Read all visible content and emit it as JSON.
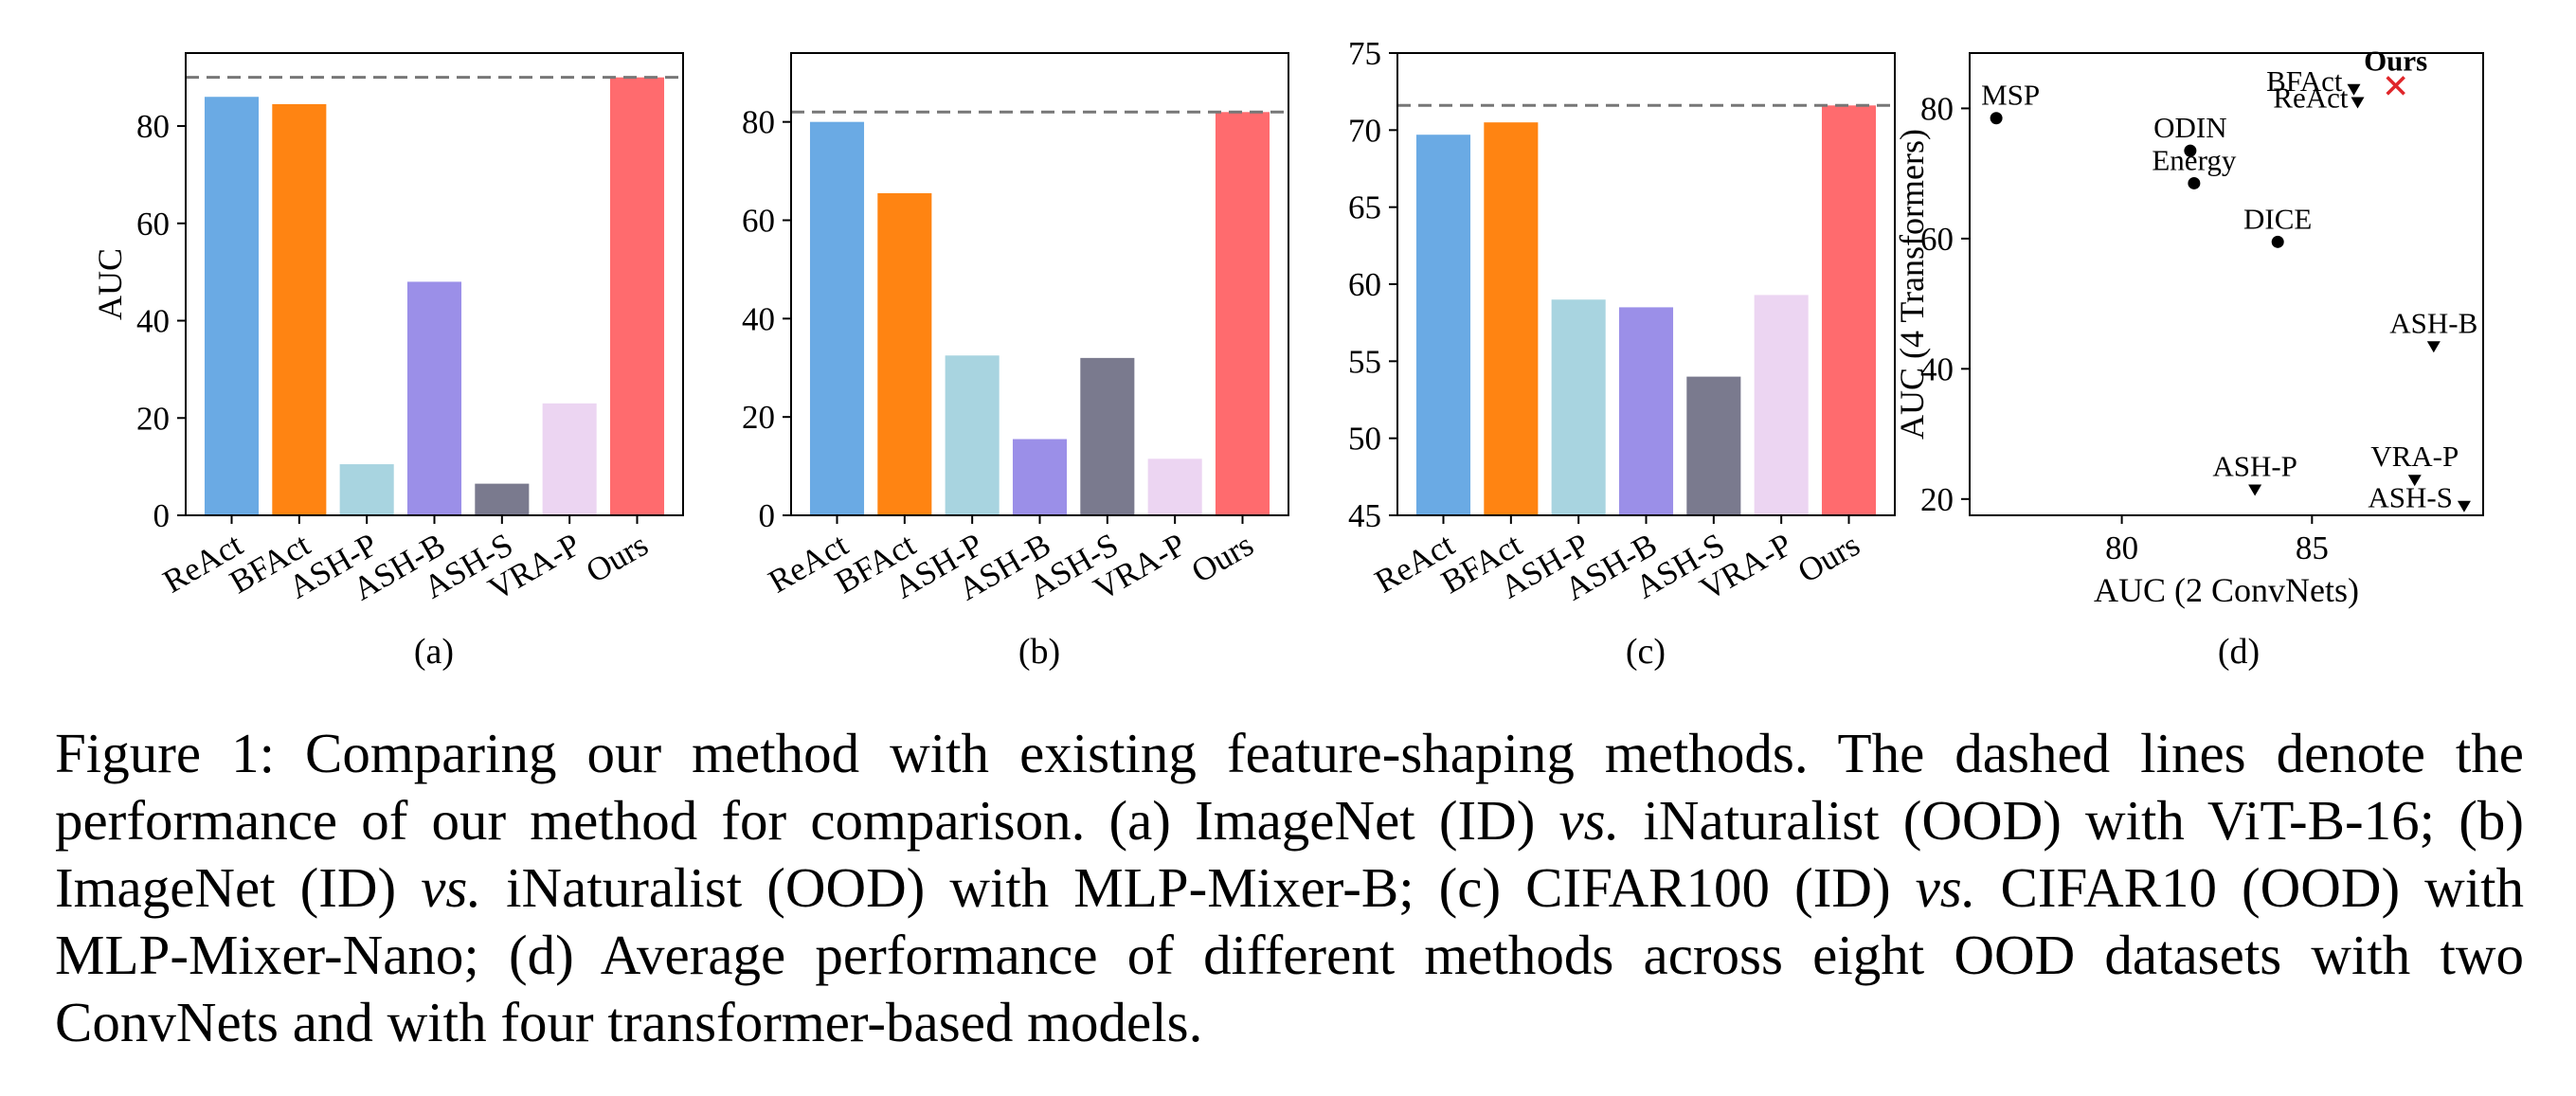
{
  "chart_data": [
    {
      "type": "bar",
      "panel": "(a)",
      "categories": [
        "ReAct",
        "BFAct",
        "ASH-P",
        "ASH-B",
        "ASH-S",
        "VRA-P",
        "Ours"
      ],
      "values": [
        86,
        84.5,
        10.5,
        48,
        6.5,
        23,
        90
      ],
      "colors": [
        "#6aaae4",
        "#ff8412",
        "#a8d4e0",
        "#9b8fe8",
        "#7a7a8e",
        "#ecd5f2",
        "#ff6b6e"
      ],
      "reference_line": 90,
      "xlabel": "",
      "ylabel": "AUC",
      "ylim": [
        0,
        95
      ],
      "yticks": [
        0,
        20,
        40,
        60,
        80
      ]
    },
    {
      "type": "bar",
      "panel": "(b)",
      "categories": [
        "ReAct",
        "BFAct",
        "ASH-P",
        "ASH-B",
        "ASH-S",
        "VRA-P",
        "Ours"
      ],
      "values": [
        80,
        65.5,
        32.5,
        15.5,
        32,
        11.5,
        82
      ],
      "colors": [
        "#6aaae4",
        "#ff8412",
        "#a8d4e0",
        "#9b8fe8",
        "#7a7a8e",
        "#ecd5f2",
        "#ff6b6e"
      ],
      "reference_line": 82,
      "xlabel": "",
      "ylabel": "",
      "ylim": [
        0,
        94
      ],
      "yticks": [
        0,
        20,
        40,
        60,
        80
      ]
    },
    {
      "type": "bar",
      "panel": "(c)",
      "categories": [
        "ReAct",
        "BFAct",
        "ASH-P",
        "ASH-B",
        "ASH-S",
        "VRA-P",
        "Ours"
      ],
      "values": [
        69.7,
        70.5,
        59,
        58.5,
        54,
        59.3,
        71.6
      ],
      "colors": [
        "#6aaae4",
        "#ff8412",
        "#a8d4e0",
        "#9b8fe8",
        "#7a7a8e",
        "#ecd5f2",
        "#ff6b6e"
      ],
      "reference_line": 71.6,
      "xlabel": "",
      "ylabel": "",
      "ylim": [
        45,
        75
      ],
      "yticks": [
        45,
        50,
        55,
        60,
        65,
        70,
        75
      ]
    },
    {
      "type": "scatter",
      "panel": "(d)",
      "xlabel": "AUC (2 ConvNets)",
      "ylabel": "AUC (4 Transformers)",
      "xlim": [
        76,
        89.5
      ],
      "ylim": [
        17.5,
        88.5
      ],
      "xticks": [
        80,
        85
      ],
      "yticks": [
        20,
        40,
        60,
        80
      ],
      "points": [
        {
          "label": "MSP",
          "x": 76.7,
          "y": 78.5,
          "marker": "circle",
          "color": "#000000",
          "label_pos": "ne"
        },
        {
          "label": "ODIN",
          "x": 81.8,
          "y": 73.5,
          "marker": "circle",
          "color": "#000000",
          "label_pos": "n"
        },
        {
          "label": "Energy",
          "x": 81.9,
          "y": 68.5,
          "marker": "circle",
          "color": "#000000",
          "label_pos": "n"
        },
        {
          "label": "DICE",
          "x": 84.1,
          "y": 59.5,
          "marker": "circle",
          "color": "#000000",
          "label_pos": "n"
        },
        {
          "label": "BFAct",
          "x": 86.1,
          "y": 83,
          "marker": "triangle",
          "color": "#000000",
          "label_pos": "w"
        },
        {
          "label": "ReAct",
          "x": 86.2,
          "y": 81,
          "marker": "triangle",
          "color": "#000000",
          "label_pos": "sw"
        },
        {
          "label": "Ours",
          "x": 87.2,
          "y": 83.5,
          "marker": "x",
          "color": "#e0262a",
          "label_pos": "n",
          "bold": true
        },
        {
          "label": "ASH-B",
          "x": 88.2,
          "y": 43.5,
          "marker": "triangle",
          "color": "#000000",
          "label_pos": "n"
        },
        {
          "label": "ASH-P",
          "x": 83.5,
          "y": 21.5,
          "marker": "triangle",
          "color": "#000000",
          "label_pos": "n"
        },
        {
          "label": "VRA-P",
          "x": 87.7,
          "y": 23,
          "marker": "triangle",
          "color": "#000000",
          "label_pos": "n"
        },
        {
          "label": "ASH-S",
          "x": 89.0,
          "y": 19,
          "marker": "triangle",
          "color": "#000000",
          "label_pos": "w"
        }
      ]
    }
  ],
  "caption": {
    "label": "Figure 1:",
    "segments": [
      " Comparing our method with existing feature-shaping methods. The dashed lines denote the performance of our method for comparison. (a) ImageNet (ID) ",
      "vs.",
      " iNaturalist (OOD) with ViT-B-16; (b) ImageNet (ID) ",
      "vs.",
      " iNaturalist (OOD) with MLP-Mixer-B; (c) CIFAR100 (ID) ",
      "vs.",
      " CIFAR10 (OOD) with MLP-Mixer-Nano; (d) Average performance of different methods across eight OOD datasets with two ConvNets and with four transformer-based models."
    ]
  }
}
